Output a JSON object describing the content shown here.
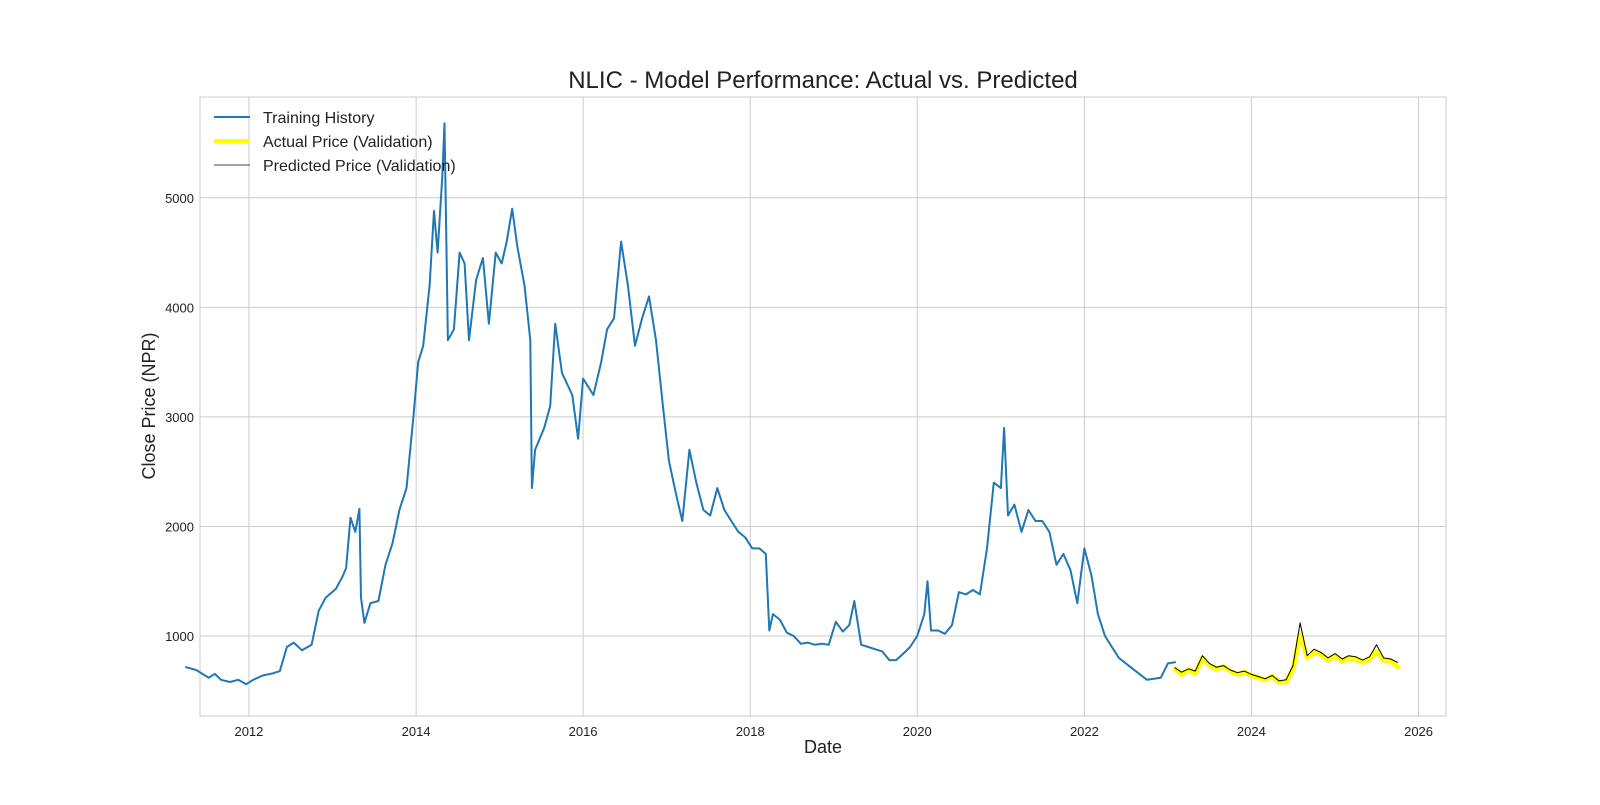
{
  "chart_data": {
    "type": "line",
    "title": "NLIC - Model Performance: Actual vs. Predicted",
    "xlabel": "Date",
    "ylabel": "Close Price (NPR)",
    "xlim": [
      "2011-06-01",
      "2026-05-01"
    ],
    "ylim": [
      270,
      5920
    ],
    "x_ticks": [
      "2012",
      "2014",
      "2016",
      "2018",
      "2020",
      "2022",
      "2024",
      "2026"
    ],
    "y_ticks": [
      1000,
      2000,
      3000,
      4000,
      5000
    ],
    "grid": true,
    "legend_position": "top-left",
    "series": [
      {
        "name": "Training History",
        "color": "#1f77b4",
        "points": [
          [
            "2011-04-01",
            715
          ],
          [
            "2011-05-15",
            690
          ],
          [
            "2011-06-15",
            650
          ],
          [
            "2011-07-10",
            620
          ],
          [
            "2011-08-05",
            655
          ],
          [
            "2011-09-01",
            600
          ],
          [
            "2011-10-10",
            580
          ],
          [
            "2011-11-15",
            600
          ],
          [
            "2011-12-20",
            560
          ],
          [
            "2012-01-20",
            600
          ],
          [
            "2012-03-01",
            640
          ],
          [
            "2012-04-15",
            660
          ],
          [
            "2012-05-15",
            680
          ],
          [
            "2012-06-15",
            900
          ],
          [
            "2012-07-15",
            940
          ],
          [
            "2012-08-20",
            870
          ],
          [
            "2012-10-01",
            920
          ],
          [
            "2012-11-01",
            1230
          ],
          [
            "2012-12-01",
            1350
          ],
          [
            "2013-01-15",
            1430
          ],
          [
            "2013-02-15",
            1550
          ],
          [
            "2013-03-01",
            1620
          ],
          [
            "2013-03-20",
            2080
          ],
          [
            "2013-04-10",
            1950
          ],
          [
            "2013-04-28",
            2160
          ],
          [
            "2013-05-05",
            1350
          ],
          [
            "2013-05-20",
            1120
          ],
          [
            "2013-06-15",
            1300
          ],
          [
            "2013-07-20",
            1320
          ],
          [
            "2013-08-20",
            1650
          ],
          [
            "2013-09-20",
            1850
          ],
          [
            "2013-10-20",
            2150
          ],
          [
            "2013-11-20",
            2350
          ],
          [
            "2013-12-20",
            3000
          ],
          [
            "2014-01-10",
            3500
          ],
          [
            "2014-02-01",
            3650
          ],
          [
            "2014-03-01",
            4200
          ],
          [
            "2014-03-20",
            4880
          ],
          [
            "2014-04-05",
            4500
          ],
          [
            "2014-04-25",
            5180
          ],
          [
            "2014-05-05",
            5680
          ],
          [
            "2014-05-20",
            3700
          ],
          [
            "2014-06-15",
            3800
          ],
          [
            "2014-07-10",
            4500
          ],
          [
            "2014-08-01",
            4400
          ],
          [
            "2014-08-20",
            3700
          ],
          [
            "2014-09-20",
            4250
          ],
          [
            "2014-10-20",
            4450
          ],
          [
            "2014-11-15",
            3850
          ],
          [
            "2014-12-15",
            4500
          ],
          [
            "2015-01-10",
            4400
          ],
          [
            "2015-02-01",
            4600
          ],
          [
            "2015-02-25",
            4900
          ],
          [
            "2015-03-20",
            4550
          ],
          [
            "2015-04-20",
            4200
          ],
          [
            "2015-05-15",
            3700
          ],
          [
            "2015-05-22",
            2350
          ],
          [
            "2015-06-05",
            2700
          ],
          [
            "2015-07-15",
            2900
          ],
          [
            "2015-08-10",
            3100
          ],
          [
            "2015-09-01",
            3850
          ],
          [
            "2015-10-01",
            3400
          ],
          [
            "2015-11-15",
            3200
          ],
          [
            "2015-12-10",
            2800
          ],
          [
            "2016-01-01",
            3350
          ],
          [
            "2016-02-15",
            3200
          ],
          [
            "2016-03-20",
            3500
          ],
          [
            "2016-04-15",
            3800
          ],
          [
            "2016-05-15",
            3900
          ],
          [
            "2016-06-15",
            4600
          ],
          [
            "2016-07-15",
            4200
          ],
          [
            "2016-08-15",
            3650
          ],
          [
            "2016-09-15",
            3900
          ],
          [
            "2016-10-15",
            4100
          ],
          [
            "2016-11-15",
            3700
          ],
          [
            "2016-12-15",
            3100
          ],
          [
            "2017-01-10",
            2600
          ],
          [
            "2017-02-10",
            2300
          ],
          [
            "2017-03-10",
            2050
          ],
          [
            "2017-04-10",
            2700
          ],
          [
            "2017-05-10",
            2400
          ],
          [
            "2017-06-10",
            2150
          ],
          [
            "2017-07-10",
            2100
          ],
          [
            "2017-08-10",
            2350
          ],
          [
            "2017-09-10",
            2150
          ],
          [
            "2017-10-10",
            2050
          ],
          [
            "2017-11-10",
            1950
          ],
          [
            "2017-12-10",
            1900
          ],
          [
            "2018-01-10",
            1800
          ],
          [
            "2018-02-10",
            1800
          ],
          [
            "2018-03-10",
            1750
          ],
          [
            "2018-03-25",
            1050
          ],
          [
            "2018-04-10",
            1200
          ],
          [
            "2018-05-10",
            1150
          ],
          [
            "2018-06-10",
            1030
          ],
          [
            "2018-07-10",
            1000
          ],
          [
            "2018-08-10",
            930
          ],
          [
            "2018-09-10",
            940
          ],
          [
            "2018-10-10",
            920
          ],
          [
            "2018-11-10",
            930
          ],
          [
            "2018-12-10",
            920
          ],
          [
            "2019-01-10",
            1130
          ],
          [
            "2019-02-10",
            1040
          ],
          [
            "2019-03-10",
            1100
          ],
          [
            "2019-04-01",
            1320
          ],
          [
            "2019-05-01",
            920
          ],
          [
            "2019-06-01",
            900
          ],
          [
            "2019-07-01",
            880
          ],
          [
            "2019-08-01",
            860
          ],
          [
            "2019-09-01",
            780
          ],
          [
            "2019-10-01",
            780
          ],
          [
            "2019-11-01",
            840
          ],
          [
            "2019-12-01",
            900
          ],
          [
            "2020-01-01",
            1000
          ],
          [
            "2020-02-01",
            1200
          ],
          [
            "2020-02-15",
            1500
          ],
          [
            "2020-03-01",
            1050
          ],
          [
            "2020-04-01",
            1050
          ],
          [
            "2020-05-01",
            1020
          ],
          [
            "2020-06-01",
            1100
          ],
          [
            "2020-07-01",
            1400
          ],
          [
            "2020-08-01",
            1380
          ],
          [
            "2020-09-01",
            1420
          ],
          [
            "2020-10-01",
            1380
          ],
          [
            "2020-11-01",
            1800
          ],
          [
            "2020-12-01",
            2400
          ],
          [
            "2021-01-01",
            2350
          ],
          [
            "2021-01-15",
            2900
          ],
          [
            "2021-02-01",
            2100
          ],
          [
            "2021-03-01",
            2200
          ],
          [
            "2021-04-01",
            1950
          ],
          [
            "2021-05-01",
            2150
          ],
          [
            "2021-06-01",
            2050
          ],
          [
            "2021-07-01",
            2050
          ],
          [
            "2021-08-01",
            1950
          ],
          [
            "2021-09-01",
            1650
          ],
          [
            "2021-10-01",
            1750
          ],
          [
            "2021-11-01",
            1600
          ],
          [
            "2021-12-01",
            1300
          ],
          [
            "2022-01-01",
            1800
          ],
          [
            "2022-02-01",
            1550
          ],
          [
            "2022-03-01",
            1200
          ],
          [
            "2022-04-01",
            1000
          ],
          [
            "2022-05-01",
            900
          ],
          [
            "2022-06-01",
            800
          ],
          [
            "2022-07-01",
            750
          ],
          [
            "2022-08-01",
            700
          ],
          [
            "2022-09-01",
            650
          ],
          [
            "2022-10-01",
            600
          ],
          [
            "2022-11-01",
            610
          ],
          [
            "2022-12-01",
            620
          ],
          [
            "2023-01-01",
            750
          ],
          [
            "2023-02-01",
            760
          ]
        ]
      },
      {
        "name": "Actual Price (Validation)",
        "color": "#ffff00",
        "points": [
          [
            "2023-02-01",
            700
          ],
          [
            "2023-03-01",
            650
          ],
          [
            "2023-04-01",
            690
          ],
          [
            "2023-05-01",
            660
          ],
          [
            "2023-06-01",
            800
          ],
          [
            "2023-07-01",
            730
          ],
          [
            "2023-08-01",
            700
          ],
          [
            "2023-09-01",
            720
          ],
          [
            "2023-10-01",
            680
          ],
          [
            "2023-11-01",
            650
          ],
          [
            "2023-12-01",
            670
          ],
          [
            "2024-01-01",
            640
          ],
          [
            "2024-02-01",
            620
          ],
          [
            "2024-03-01",
            600
          ],
          [
            "2024-04-01",
            630
          ],
          [
            "2024-05-01",
            580
          ],
          [
            "2024-06-01",
            580
          ],
          [
            "2024-07-01",
            700
          ],
          [
            "2024-08-01",
            1020
          ],
          [
            "2024-09-01",
            800
          ],
          [
            "2024-10-01",
            850
          ],
          [
            "2024-11-01",
            830
          ],
          [
            "2024-12-01",
            780
          ],
          [
            "2025-01-01",
            820
          ],
          [
            "2025-02-01",
            770
          ],
          [
            "2025-03-01",
            800
          ],
          [
            "2025-04-01",
            790
          ],
          [
            "2025-05-01",
            760
          ],
          [
            "2025-06-01",
            790
          ],
          [
            "2025-07-01",
            860
          ],
          [
            "2025-08-01",
            780
          ],
          [
            "2025-09-01",
            770
          ],
          [
            "2025-10-01",
            720
          ]
        ]
      },
      {
        "name": "Predicted Price (Validation)",
        "color": "#000000",
        "points": [
          [
            "2023-02-01",
            710
          ],
          [
            "2023-03-01",
            670
          ],
          [
            "2023-04-01",
            700
          ],
          [
            "2023-05-01",
            680
          ],
          [
            "2023-06-01",
            820
          ],
          [
            "2023-07-01",
            750
          ],
          [
            "2023-08-01",
            715
          ],
          [
            "2023-09-01",
            730
          ],
          [
            "2023-10-01",
            690
          ],
          [
            "2023-11-01",
            665
          ],
          [
            "2023-12-01",
            680
          ],
          [
            "2024-01-01",
            650
          ],
          [
            "2024-02-01",
            630
          ],
          [
            "2024-03-01",
            610
          ],
          [
            "2024-04-01",
            640
          ],
          [
            "2024-05-01",
            590
          ],
          [
            "2024-06-01",
            600
          ],
          [
            "2024-07-01",
            730
          ],
          [
            "2024-08-01",
            1120
          ],
          [
            "2024-09-01",
            820
          ],
          [
            "2024-10-01",
            880
          ],
          [
            "2024-11-01",
            850
          ],
          [
            "2024-12-01",
            800
          ],
          [
            "2025-01-01",
            840
          ],
          [
            "2025-02-01",
            790
          ],
          [
            "2025-03-01",
            820
          ],
          [
            "2025-04-01",
            810
          ],
          [
            "2025-05-01",
            780
          ],
          [
            "2025-06-01",
            810
          ],
          [
            "2025-07-01",
            920
          ],
          [
            "2025-08-01",
            800
          ],
          [
            "2025-09-01",
            790
          ],
          [
            "2025-10-01",
            760
          ]
        ]
      }
    ]
  }
}
